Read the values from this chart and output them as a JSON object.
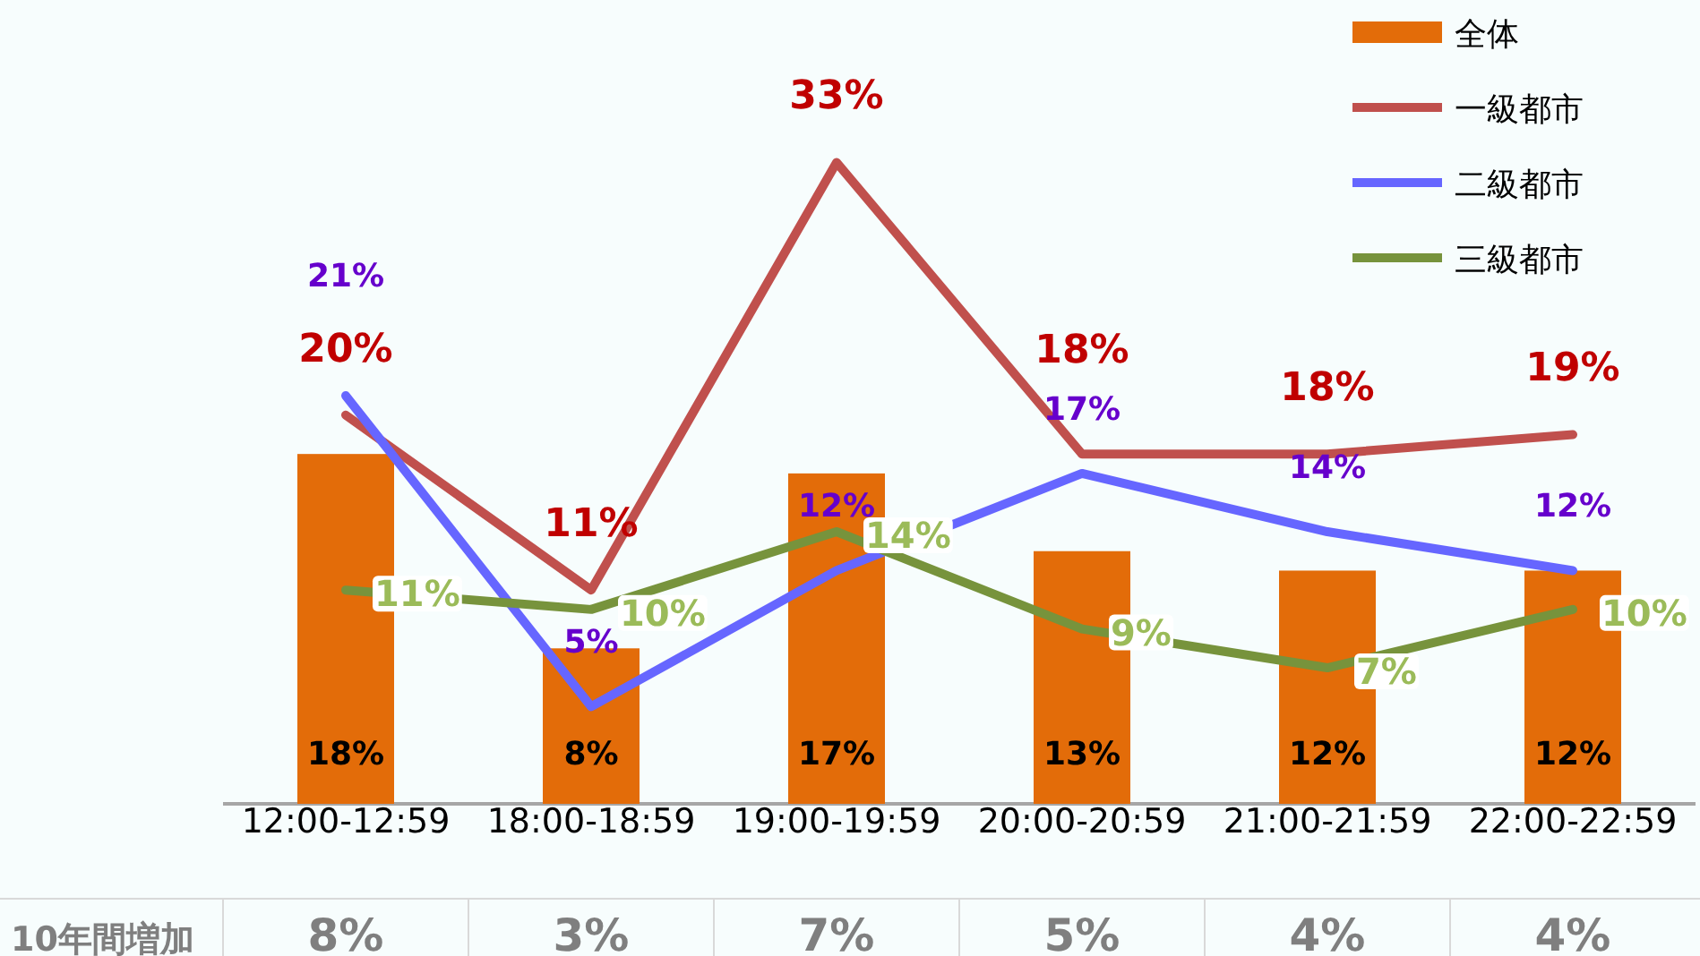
{
  "chart_data": {
    "type": "bar",
    "categories": [
      "12:00-12:59",
      "18:00-18:59",
      "19:00-19:59",
      "20:00-20:59",
      "21:00-21:59",
      "22:00-22:59"
    ],
    "series": [
      {
        "name": "全体",
        "color": "#e36c09",
        "values": [
          18,
          8,
          17,
          13,
          12,
          12
        ],
        "value_labels": [
          "18%",
          "8%",
          "17%",
          "13%",
          "12%",
          "12%"
        ]
      },
      {
        "name": "一級都市",
        "type": "line",
        "color": "#c0504d",
        "values": [
          20,
          11,
          33,
          18,
          18,
          19
        ],
        "value_labels": [
          "20%",
          "11%",
          "33%",
          "18%",
          "18%",
          "19%"
        ]
      },
      {
        "name": "二級都市",
        "type": "line",
        "color": "#6666ff",
        "values": [
          21,
          5,
          12,
          17,
          14,
          12
        ],
        "value_labels": [
          "21%",
          "5%",
          "12%",
          "17%",
          "14%",
          "12%"
        ]
      },
      {
        "name": "三級都市",
        "type": "line",
        "color": "#77933c",
        "values": [
          11,
          10,
          14,
          9,
          7,
          10
        ],
        "value_labels": [
          "11%",
          "10%",
          "14%",
          "9%",
          "7%",
          "10%"
        ]
      }
    ],
    "legend": "top right",
    "marker": "none",
    "line_style": "solid",
    "annotations": [
      "10年間増加",
      "8%",
      "3%",
      "7%",
      "5%",
      "4%",
      "4%"
    ]
  }
}
